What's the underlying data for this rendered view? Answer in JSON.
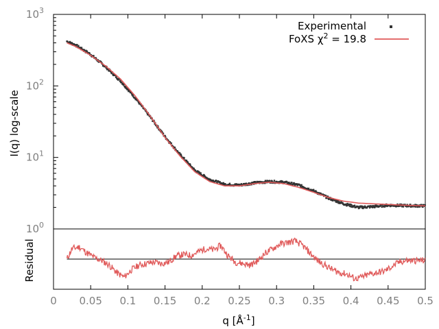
{
  "chart_data": {
    "type": "scatter",
    "x_label": "q [Å",
    "x_label_sup": "-1",
    "x_label_end": "]",
    "y_label": "I(q) log-scale",
    "residual_label": "Residual",
    "x_range": [
      0,
      0.5
    ],
    "y_range": [
      1,
      1000
    ],
    "y_scale": "log",
    "x_ticks": [
      "0",
      "0.05",
      "0.1",
      "0.15",
      "0.2",
      "0.25",
      "0.3",
      "0.35",
      "0.4",
      "0.45",
      "0.5"
    ],
    "x_tick_values": [
      0,
      0.05,
      0.1,
      0.15,
      0.2,
      0.25,
      0.3,
      0.35,
      0.4,
      0.45,
      0.5
    ],
    "y_ticks": [
      {
        "base": "10",
        "exp": "0",
        "value": 1
      },
      {
        "base": "10",
        "exp": "1",
        "value": 10
      },
      {
        "base": "10",
        "exp": "2",
        "value": 100
      },
      {
        "base": "10",
        "exp": "3",
        "value": 1000
      }
    ],
    "legend_placement": "top-right",
    "series": [
      {
        "name": "Experimental",
        "marker": "dot",
        "color": "#333333",
        "x": [
          0.018,
          0.03,
          0.05,
          0.07,
          0.09,
          0.11,
          0.13,
          0.15,
          0.17,
          0.19,
          0.21,
          0.23,
          0.25,
          0.27,
          0.29,
          0.31,
          0.33,
          0.35,
          0.37,
          0.39,
          0.41,
          0.43,
          0.45,
          0.47,
          0.5
        ],
        "y": [
          420,
          370,
          275,
          185,
          118,
          68,
          37,
          19.5,
          11.0,
          6.6,
          4.9,
          4.2,
          4.1,
          4.4,
          4.6,
          4.5,
          4.1,
          3.4,
          2.7,
          2.25,
          2.0,
          2.05,
          2.15,
          2.12,
          2.1
        ]
      },
      {
        "name": "FoXS",
        "name_suffix": "χ",
        "name_sup": "2",
        "name_value": " = 19.8",
        "color": "#e05a5a",
        "x": [
          0.018,
          0.03,
          0.05,
          0.07,
          0.09,
          0.11,
          0.13,
          0.15,
          0.17,
          0.19,
          0.21,
          0.23,
          0.25,
          0.27,
          0.29,
          0.31,
          0.33,
          0.35,
          0.37,
          0.39,
          0.41,
          0.43,
          0.45,
          0.47,
          0.5
        ],
        "y": [
          400,
          355,
          268,
          190,
          125,
          72,
          38,
          19,
          10.5,
          6.3,
          4.6,
          4.0,
          4.0,
          4.3,
          4.5,
          4.3,
          3.8,
          3.25,
          2.75,
          2.45,
          2.3,
          2.25,
          2.2,
          2.15,
          2.1
        ]
      }
    ],
    "residual": {
      "color": "#e05a5a",
      "zero_line_color": "#000000",
      "x": [
        0.018,
        0.025,
        0.035,
        0.045,
        0.055,
        0.065,
        0.075,
        0.085,
        0.095,
        0.105,
        0.115,
        0.125,
        0.135,
        0.145,
        0.155,
        0.165,
        0.175,
        0.185,
        0.195,
        0.205,
        0.215,
        0.225,
        0.235,
        0.245,
        0.255,
        0.265,
        0.275,
        0.285,
        0.295,
        0.305,
        0.315,
        0.325,
        0.335,
        0.345,
        0.355,
        0.365,
        0.375,
        0.385,
        0.395,
        0.405,
        0.415,
        0.425,
        0.435,
        0.445,
        0.455,
        0.465,
        0.475,
        0.485,
        0.495,
        0.5
      ],
      "y": [
        0.0,
        0.35,
        0.4,
        0.2,
        0.05,
        -0.05,
        -0.2,
        -0.45,
        -0.6,
        -0.35,
        -0.2,
        -0.15,
        -0.1,
        -0.15,
        -0.1,
        0.1,
        0.15,
        0.12,
        0.25,
        0.35,
        0.3,
        0.45,
        0.1,
        -0.1,
        -0.15,
        -0.2,
        -0.05,
        0.2,
        0.35,
        0.5,
        0.55,
        0.6,
        0.45,
        0.2,
        -0.05,
        -0.2,
        -0.35,
        -0.45,
        -0.5,
        -0.65,
        -0.6,
        -0.5,
        -0.45,
        -0.4,
        -0.25,
        -0.1,
        -0.05,
        -0.05,
        -0.05,
        -0.05
      ],
      "y_range": [
        -1.0,
        1.0
      ]
    }
  }
}
